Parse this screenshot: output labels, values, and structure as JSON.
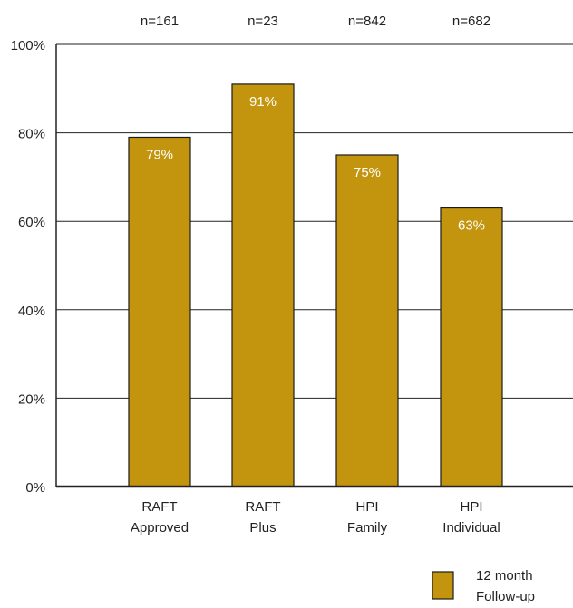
{
  "chart_data": {
    "type": "bar",
    "categories": [
      [
        "RAFT",
        "Approved"
      ],
      [
        "RAFT",
        "Plus"
      ],
      [
        "HPI",
        "Family"
      ],
      [
        "HPI",
        "Individual"
      ]
    ],
    "values": [
      79,
      91,
      75,
      63
    ],
    "value_labels": [
      "79%",
      "91%",
      "75%",
      "63%"
    ],
    "sample_sizes": [
      "n=161",
      "n=23",
      "n=842",
      "n=682"
    ],
    "series": [
      {
        "name": "12 month Follow-up",
        "name_lines": [
          "12 month",
          "Follow-up"
        ],
        "values": [
          79,
          91,
          75,
          63
        ]
      }
    ],
    "ylim": [
      0,
      100
    ],
    "yticks": [
      0,
      20,
      40,
      60,
      80,
      100
    ],
    "ytick_labels": [
      "0%",
      "20%",
      "40%",
      "60%",
      "80%",
      "100%"
    ],
    "grid": true,
    "legend_position": "bottom-right",
    "colors": {
      "bar": "#c3950f",
      "bar_edge": "#1a1a1a",
      "label_inside": "#ffffff",
      "text": "#222222",
      "axis": "#222222"
    }
  }
}
